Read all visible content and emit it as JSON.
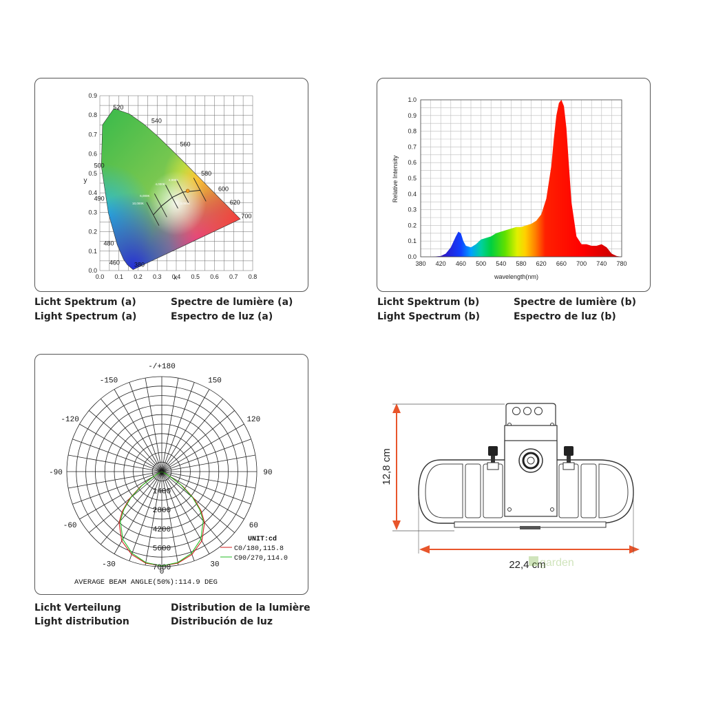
{
  "cie": {
    "x_label": "x",
    "y_label": "y",
    "x_ticks": [
      "0.0",
      "0.1",
      "0.2",
      "0.3",
      "0.4",
      "0.5",
      "0.6",
      "0.7",
      "0.8"
    ],
    "y_ticks": [
      "0.9",
      "0.8",
      "0.7",
      "0.6",
      "0.5",
      "0.4",
      "0.3",
      "0.2",
      "0.1",
      "0.0"
    ],
    "wavelength_labels": [
      "520",
      "540",
      "560",
      "580",
      "600",
      "620",
      "700",
      "500",
      "490",
      "480",
      "460",
      "380"
    ],
    "cct_labels": [
      "10,000K",
      "6,000K",
      "4,000K",
      "3,000K",
      "2,000K"
    ]
  },
  "chart_data": [
    {
      "type": "line",
      "title": "",
      "xlabel": "x",
      "ylabel": "y",
      "xlim": [
        0,
        0.8
      ],
      "ylim": [
        0,
        0.9
      ],
      "series": [
        {
          "values": [
            [
              0.174,
              0.005
            ],
            [
              0.144,
              0.03
            ],
            [
              0.124,
              0.058
            ],
            [
              0.091,
              0.133
            ],
            [
              0.045,
              0.295
            ],
            [
              0.008,
              0.538
            ],
            [
              0.014,
              0.75
            ],
            [
              0.074,
              0.834
            ],
            [
              0.155,
              0.806
            ],
            [
              0.23,
              0.754
            ],
            [
              0.302,
              0.692
            ],
            [
              0.373,
              0.624
            ],
            [
              0.444,
              0.555
            ],
            [
              0.512,
              0.487
            ],
            [
              0.575,
              0.424
            ],
            [
              0.627,
              0.372
            ],
            [
              0.666,
              0.334
            ],
            [
              0.692,
              0.308
            ],
            [
              0.735,
              0.265
            ]
          ]
        },
        {
          "values": [
            [
              0.281,
              0.288
            ],
            [
              0.322,
              0.332
            ],
            [
              0.38,
              0.377
            ],
            [
              0.436,
              0.404
            ],
            [
              0.527,
              0.413
            ]
          ]
        }
      ]
    },
    {
      "type": "area",
      "title": "",
      "xlabel": "wavelength(nm)",
      "ylabel": "Relative Intensity",
      "xlim": [
        380,
        780
      ],
      "ylim": [
        0,
        1.0
      ],
      "x_ticks": [
        380,
        420,
        460,
        500,
        540,
        580,
        620,
        660,
        700,
        740,
        780
      ],
      "y_ticks": [
        0.0,
        0.1,
        0.2,
        0.3,
        0.4,
        0.5,
        0.6,
        0.7,
        0.8,
        0.9,
        1.0
      ],
      "grid": true,
      "x": [
        380,
        400,
        420,
        430,
        440,
        450,
        455,
        460,
        465,
        470,
        480,
        490,
        500,
        510,
        520,
        530,
        540,
        550,
        560,
        570,
        580,
        590,
        600,
        610,
        620,
        630,
        640,
        645,
        650,
        655,
        660,
        665,
        670,
        675,
        680,
        690,
        700,
        710,
        720,
        730,
        740,
        750,
        760,
        770,
        780
      ],
      "values": [
        0.0,
        0.0,
        0.005,
        0.02,
        0.06,
        0.13,
        0.16,
        0.15,
        0.1,
        0.07,
        0.06,
        0.08,
        0.11,
        0.12,
        0.13,
        0.15,
        0.16,
        0.17,
        0.18,
        0.19,
        0.19,
        0.2,
        0.21,
        0.23,
        0.27,
        0.37,
        0.58,
        0.75,
        0.9,
        0.98,
        1.0,
        0.96,
        0.82,
        0.58,
        0.35,
        0.13,
        0.08,
        0.08,
        0.07,
        0.07,
        0.08,
        0.06,
        0.02,
        0.005,
        0.0
      ]
    },
    {
      "type": "line",
      "title": "",
      "unit_label": "UNIT:cd",
      "angle_labels": [
        "-/+180",
        "150",
        "-150",
        "120",
        "-120",
        "90",
        "-90",
        "60",
        "-60",
        "30",
        "-30",
        "0"
      ],
      "radial_ticks": [
        1400,
        2800,
        4200,
        5600,
        7000
      ],
      "radial_max": 7000,
      "series": [
        {
          "name": "C0/180,115.8",
          "color": "#d01818",
          "angles": [
            0,
            10,
            20,
            30,
            40,
            45,
            50,
            55,
            58,
            60
          ],
          "values": [
            6950,
            6850,
            6500,
            5900,
            4900,
            4100,
            3100,
            1900,
            1000,
            500
          ]
        },
        {
          "name": "C90/270,114.0",
          "color": "#22bb22",
          "angles": [
            0,
            10,
            20,
            30,
            40,
            45,
            50,
            55,
            58,
            60
          ],
          "values": [
            6950,
            6800,
            6400,
            5750,
            4750,
            3950,
            2950,
            1750,
            900,
            400
          ]
        }
      ],
      "footer": "AVERAGE BEAM ANGLE(50%):114.9 DEG"
    }
  ],
  "captions": {
    "spectrum_a": [
      "Licht Spektrum (a)",
      "Spectre de lumière (a)",
      "Light Spectrum (a)",
      "Espectro de luz (a)"
    ],
    "spectrum_b": [
      "Licht Spektrum (b)",
      "Spectre de lumière (b)",
      "Light Spectrum (b)",
      "Espectro de luz (b)"
    ],
    "distribution": [
      "Licht Verteilung",
      "Distribution de la lumière",
      "Light distribution",
      "Distribución de luz"
    ]
  },
  "dimensions": {
    "height": "12,8 cm",
    "width": "22,4 cm",
    "watermark": "garden",
    "accent": "#e8552b"
  }
}
